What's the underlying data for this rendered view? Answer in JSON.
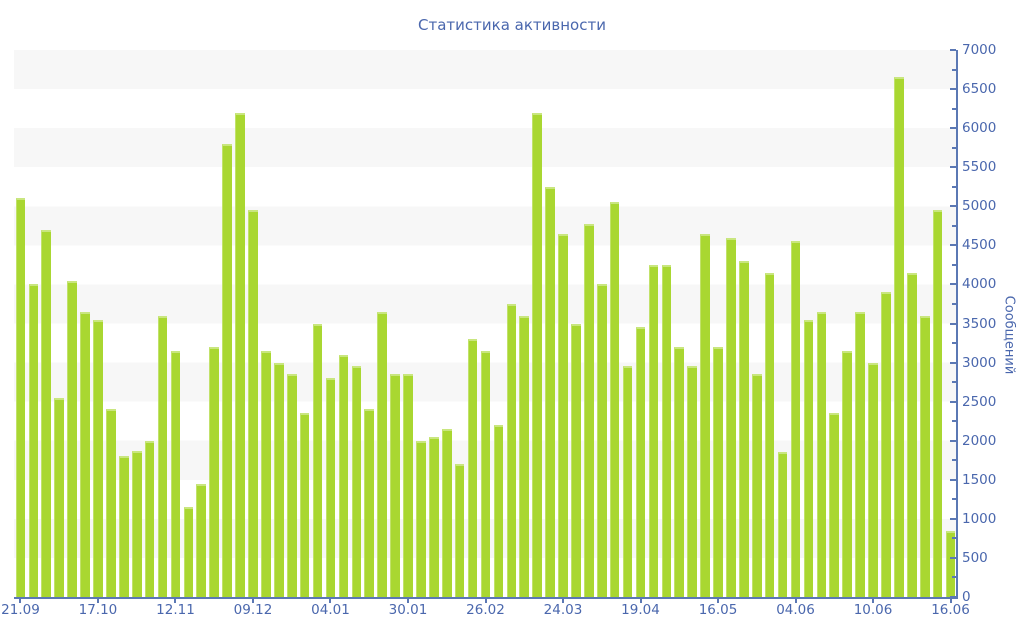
{
  "title": "Статистика активности",
  "colors": {
    "bar": "#a9d731",
    "axis": "#5b78b4",
    "text": "#4a67ad",
    "band": "#f7f7f7",
    "background": "#ffffff"
  },
  "chart_data": {
    "type": "bar",
    "title": "Статистика активности",
    "xlabel": "",
    "ylabel": "Сообщений",
    "ylim": [
      0,
      7000
    ],
    "y_major_step": 500,
    "y_minor_step": 250,
    "grid": "alternating horizontal bands of 500 units, light gray, topmost band 6500-7000",
    "legend": "none",
    "bar_color": "#a9d731",
    "values": [
      5100,
      4000,
      4700,
      2550,
      4050,
      3650,
      3550,
      2400,
      1800,
      1870,
      2000,
      3600,
      3150,
      1150,
      1450,
      3200,
      5800,
      6200,
      4950,
      3150,
      3000,
      2850,
      2350,
      3500,
      2800,
      3100,
      2950,
      2400,
      3650,
      2850,
      2850,
      2000,
      2050,
      2150,
      1700,
      3300,
      3150,
      2200,
      3750,
      3600,
      6200,
      5250,
      4650,
      3500,
      4775,
      4000,
      5050,
      2950,
      3450,
      4250,
      4250,
      3200,
      2950,
      4650,
      3200,
      4600,
      4300,
      2850,
      4150,
      1850,
      4550,
      3550,
      3650,
      2350,
      3150,
      3650,
      3000,
      3900,
      6650,
      4150,
      3600,
      4950,
      850
    ],
    "y_tick_labels": [
      "0",
      "500",
      "1000",
      "1500",
      "2000",
      "2500",
      "3000",
      "3500",
      "4000",
      "4500",
      "5000",
      "5500",
      "6000",
      "6500",
      "7000"
    ],
    "x_tick_labels": [
      "21.09",
      "17.10",
      "12.11",
      "09.12",
      "04.01",
      "30.01",
      "26.02",
      "24.03",
      "19.04",
      "16.05",
      "04.06",
      "10.06",
      "16.06"
    ],
    "x_tick_bar_index": [
      0,
      6,
      12,
      18,
      24,
      30,
      36,
      42,
      48,
      54,
      60,
      66,
      72
    ]
  }
}
